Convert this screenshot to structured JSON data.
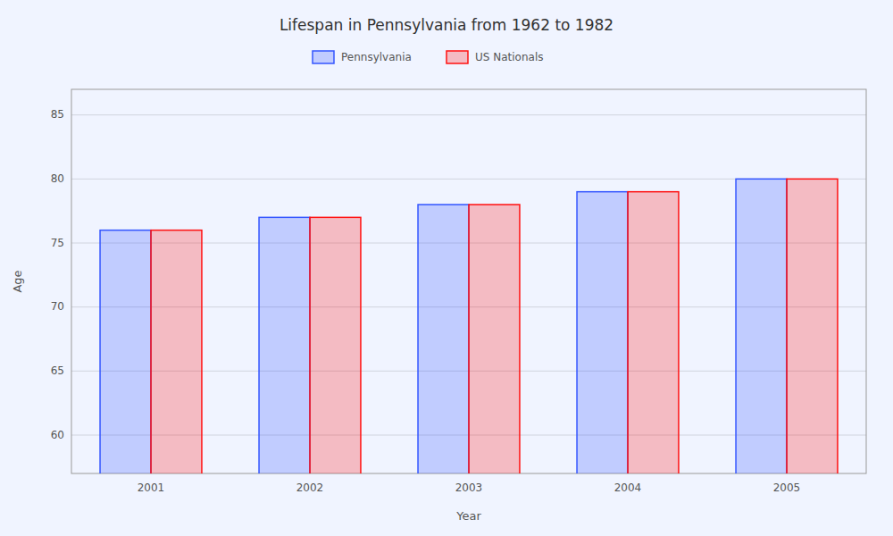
{
  "chart_data": {
    "type": "bar",
    "title": "Lifespan in Pennsylvania from 1962 to 1982",
    "xlabel": "Year",
    "ylabel": "Age",
    "categories": [
      "2001",
      "2002",
      "2003",
      "2004",
      "2005"
    ],
    "series": [
      {
        "name": "Pennsylvania",
        "color": "#3355ff",
        "values": [
          76,
          77,
          78,
          79,
          80
        ]
      },
      {
        "name": "US Nationals",
        "color": "#ff1111",
        "values": [
          76,
          77,
          78,
          79,
          80
        ]
      }
    ],
    "ylim": [
      57,
      87
    ],
    "yticks": [
      60,
      65,
      70,
      75,
      80,
      85
    ],
    "grid": true,
    "legend": "top"
  }
}
